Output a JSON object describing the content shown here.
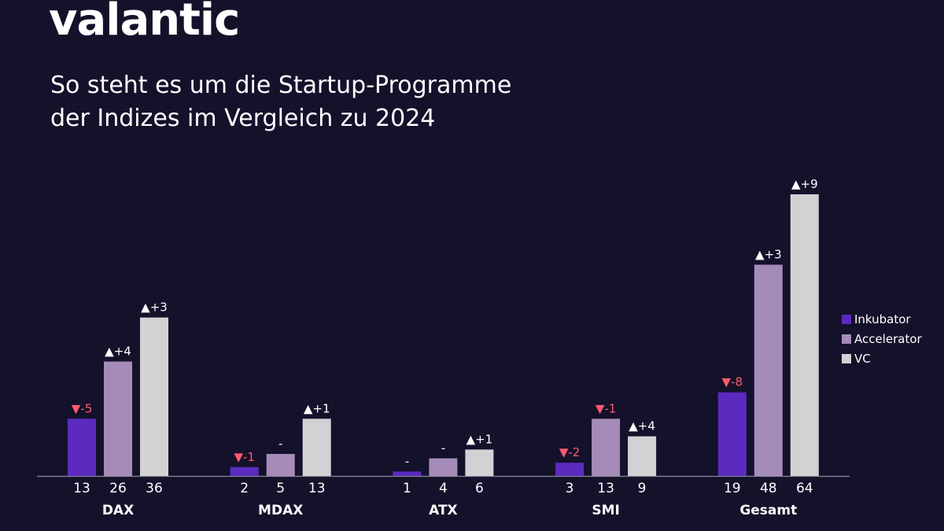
{
  "brand": "valantic",
  "chart_data": {
    "type": "bar",
    "title": [
      "So steht es um die Startup-Programme",
      "der Indizes im Vergleich zu 2024"
    ],
    "categories": [
      "DAX",
      "MDAX",
      "ATX",
      "SMI",
      "Gesamt"
    ],
    "series": [
      {
        "name": "Inkubator",
        "color": "#5b2bc0",
        "values": [
          13,
          2,
          1,
          3,
          19
        ],
        "changes": [
          "▼-5",
          "▼-1",
          "-",
          "▼-2",
          "▼-8"
        ]
      },
      {
        "name": "Accelerator",
        "color": "#a58cb8",
        "values": [
          26,
          5,
          4,
          13,
          48
        ],
        "changes": [
          "▲+4",
          "-",
          "-",
          "▼-1",
          "▲+3"
        ]
      },
      {
        "name": "VC",
        "color": "#d2d2d4",
        "values": [
          36,
          13,
          6,
          9,
          64
        ],
        "changes": [
          "▲+3",
          "▲+1",
          "▲+1",
          "▲+4",
          "▲+9"
        ]
      }
    ],
    "legend": "right"
  }
}
